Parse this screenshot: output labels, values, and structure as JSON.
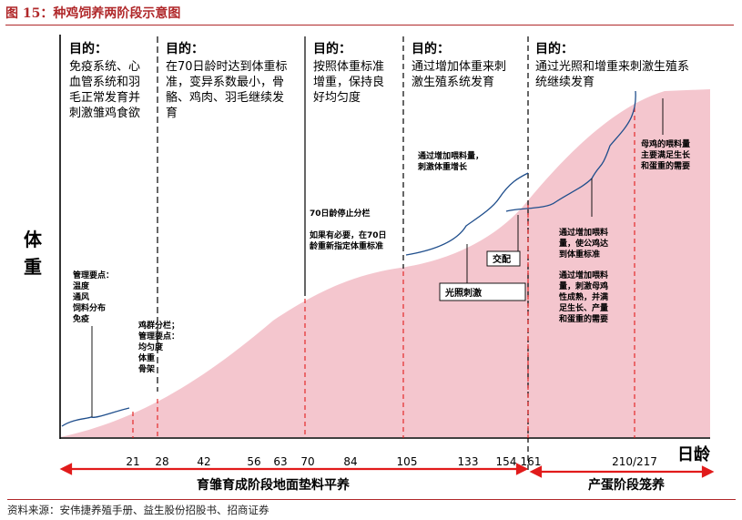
{
  "title": "图 15：种鸡饲养两阶段示意图",
  "source": "资料来源：安伟捷养殖手册、益生股份招股书、招商证券",
  "y_axis_label": [
    "体",
    "重"
  ],
  "x_axis_label": "日龄",
  "x_ticks": [
    "21",
    "28",
    "42",
    "56",
    "63",
    "70",
    "84",
    "105",
    "133",
    "154",
    "161",
    "210/217"
  ],
  "phases": {
    "brooding": "育雏育成阶段地面垫料平养",
    "laying": "产蛋阶段笼养"
  },
  "goals": [
    {
      "head": "目的：",
      "lines": [
        "免疫系统、心",
        "血管系统和羽",
        "毛正常发育并",
        "刺激雏鸡食欲"
      ]
    },
    {
      "head": "目的：",
      "lines": [
        "在70日龄时达到体重标",
        "准，变异系数最小，骨",
        "骼、鸡肉、羽毛继续发",
        "育"
      ]
    },
    {
      "head": "目的：",
      "lines": [
        "按照体重标准",
        "增重，保持良",
        "好均匀度"
      ]
    },
    {
      "head": "目的：",
      "lines": [
        "通过增加体重来刺",
        "激生殖系统发育"
      ]
    },
    {
      "head": "目的：",
      "lines": [
        "通过光照和增重来刺激生殖系",
        "统继续发育"
      ]
    }
  ],
  "notes": {
    "management1": [
      "管理要点：",
      "温度",
      "通风",
      "饲料分布",
      "免疫"
    ],
    "management2": [
      "鸡群分栏；",
      "管理要点：",
      "均匀度",
      "体重",
      "骨架"
    ],
    "day70": [
      "70日龄停止分栏",
      "",
      "如果有必要，在70日",
      "龄重新指定体重标准"
    ],
    "feed_increase": [
      "通过增加喂料量，",
      "刺激体重增长"
    ],
    "male_weight": [
      "通过增加喂料",
      "量，使公鸡达",
      "到体重标准"
    ],
    "hen_feed": [
      "通过增加喂料",
      "量，刺激母鸡",
      "性成熟，并满",
      "足生长、产量",
      "和蛋重的需要"
    ],
    "hen_needs": [
      "母鸡的喂料量",
      "主要满足生长",
      "和蛋重的需要"
    ]
  },
  "boxes": {
    "light": "光照刺激",
    "mating": "交配"
  },
  "colors": {
    "area_fill": "#f4c6ce",
    "curve_line": "#1f4e8c",
    "arrow_red": "#e11b1b",
    "title_red": "#b0282a"
  }
}
